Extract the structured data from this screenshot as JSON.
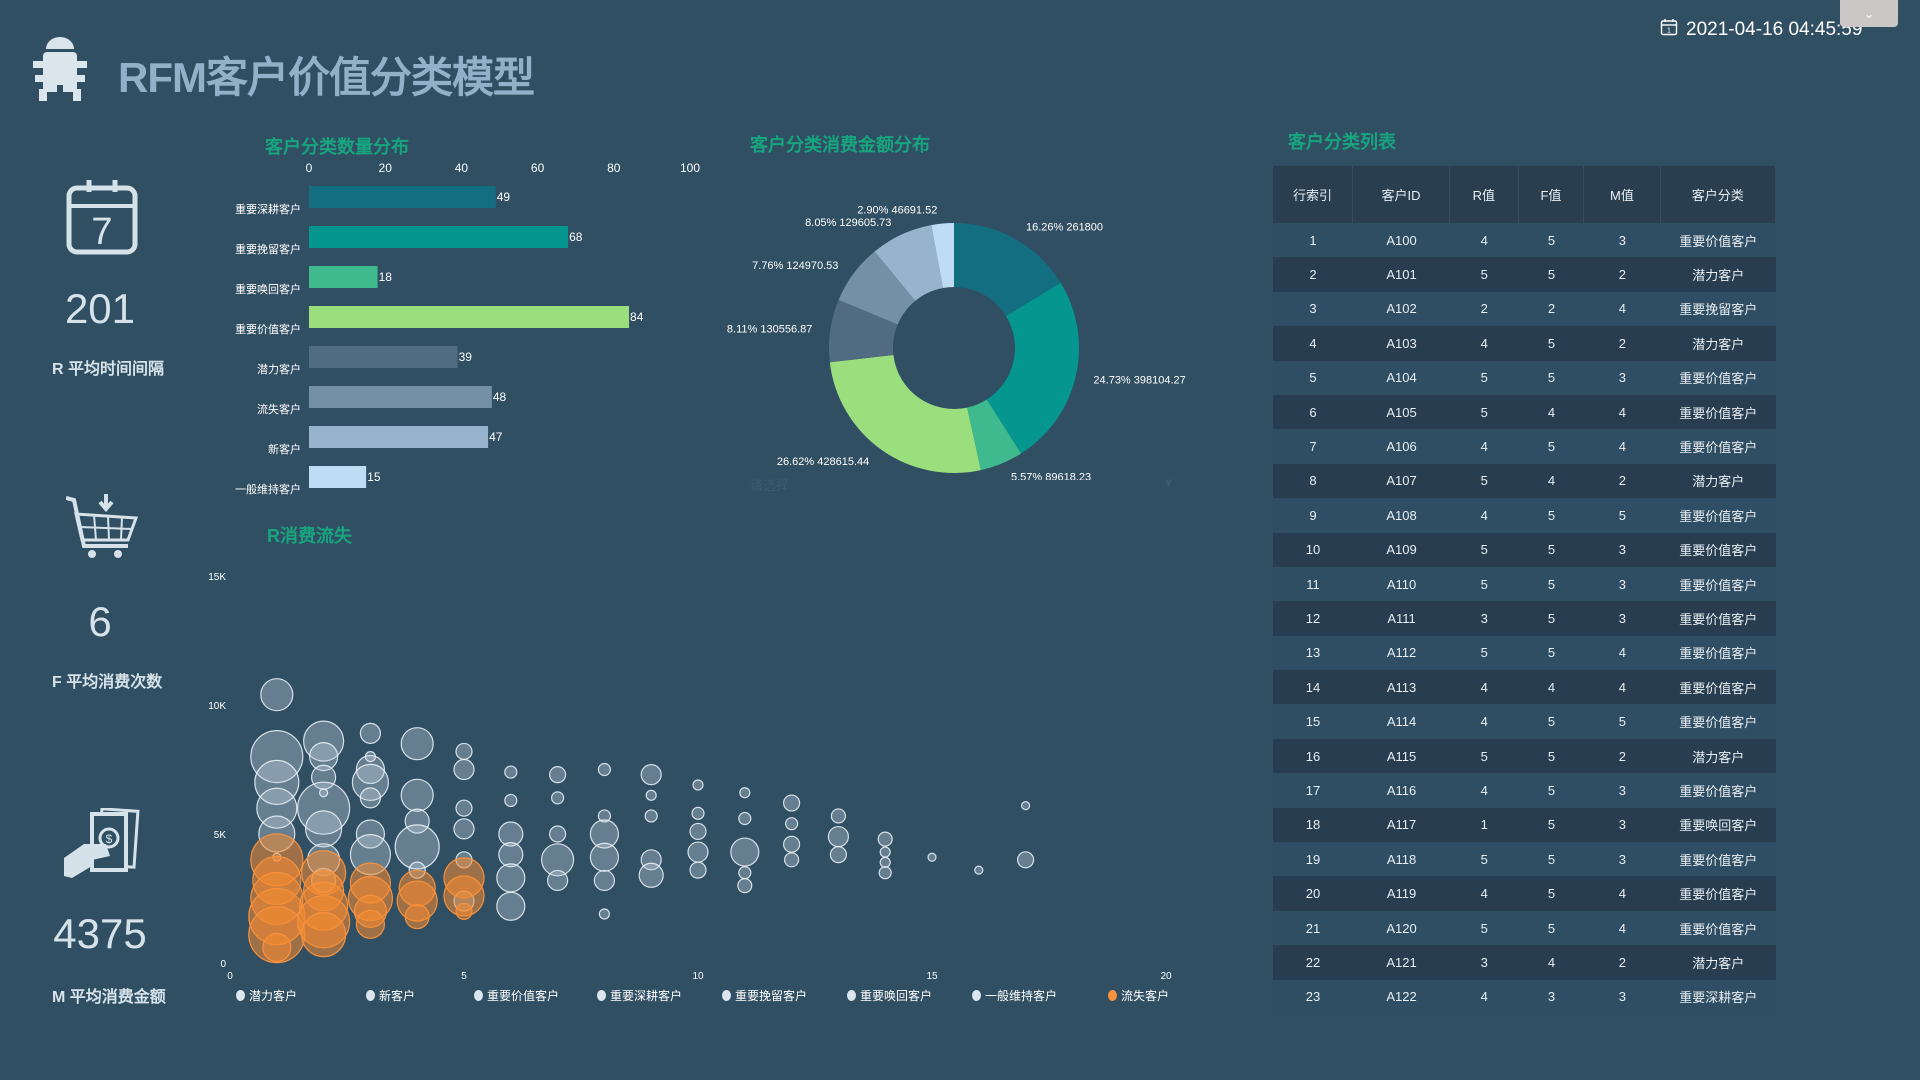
{
  "header": {
    "title": "RFM客户价值分类模型",
    "datetime": "2021-04-16 04:45:59",
    "tab_icon": "chevron-down-icon"
  },
  "kpis": [
    {
      "icon": "calendar-icon",
      "value": "201",
      "label": "R 平均时间间隔"
    },
    {
      "icon": "shopping-cart-icon",
      "value": "6",
      "label": "F 平均消费次数"
    },
    {
      "icon": "money-hand-icon",
      "value": "4375",
      "label": "M 平均消费金额"
    }
  ],
  "colors": {
    "accent": "#17a47f",
    "background": "#304f63",
    "churn": "#f7913d"
  },
  "chart_data": [
    {
      "type": "bar",
      "orientation": "horizontal",
      "title": "客户分类数量分布",
      "categories": [
        "重要深耕客户",
        "重要挽留客户",
        "重要唤回客户",
        "重要价值客户",
        "潜力客户",
        "流失客户",
        "新客户",
        "一般维持客户"
      ],
      "values": [
        49,
        68,
        18,
        84,
        39,
        48,
        47,
        15
      ],
      "colors": [
        "#136f80",
        "#05968f",
        "#3fba8f",
        "#9ade7e",
        "#506b82",
        "#7590a5",
        "#98b4cc",
        "#bfdcf5"
      ],
      "xlim": [
        0,
        100
      ],
      "xticks": [
        0,
        20,
        40,
        60,
        80,
        100
      ]
    },
    {
      "type": "pie",
      "donut": true,
      "title": "客户分类消费金额分布",
      "slices": [
        {
          "percent_label": "16.26%",
          "value": 261800,
          "value_label": "261800",
          "color": "#136f80"
        },
        {
          "percent_label": "24.73%",
          "value": 398104.27,
          "value_label": "398104.27",
          "color": "#05968f"
        },
        {
          "percent_label": "5.57%",
          "value": 89618.23,
          "value_label": "89618.23",
          "color": "#3fba8f"
        },
        {
          "percent_label": "26.62%",
          "value": 428615.44,
          "value_label": "428615.44",
          "color": "#9ade7e"
        },
        {
          "percent_label": "8.11%",
          "value": 130556.87,
          "value_label": "130556.87",
          "color": "#506b82"
        },
        {
          "percent_label": "7.76%",
          "value": 124970.53,
          "value_label": "124970.53",
          "color": "#7590a5"
        },
        {
          "percent_label": "8.05%",
          "value": 129605.73,
          "value_label": "129605.73",
          "color": "#98b4cc"
        },
        {
          "percent_label": "2.90%",
          "value": 46691.52,
          "value_label": "46691.52",
          "color": "#bfdcf5"
        }
      ],
      "select_placeholder": "请选择"
    },
    {
      "type": "scatter",
      "bubble": true,
      "title": "R消费流失",
      "xlim": [
        0,
        20
      ],
      "xticks": [
        "0",
        "5",
        "10",
        "15",
        "20"
      ],
      "ylim": [
        0,
        15000
      ],
      "yticks": [
        "0",
        "5K",
        "10K",
        "15K"
      ],
      "legend": [
        "潜力客户",
        "新客户",
        "重要价值客户",
        "重要深耕客户",
        "重要挽留客户",
        "重要唤回客户",
        "一般维持客户",
        "流失客户"
      ],
      "legend_colors": [
        "#dce6ee",
        "#dce6ee",
        "#dce6ee",
        "#dce6ee",
        "#dce6ee",
        "#dce6ee",
        "#dce6ee",
        "#f7913d"
      ],
      "legend_position": "bottom",
      "points": [
        [
          1,
          10400,
          16,
          0
        ],
        [
          1,
          8000,
          26,
          2
        ],
        [
          1,
          7000,
          22,
          2
        ],
        [
          1,
          6000,
          20,
          1
        ],
        [
          1,
          5000,
          18,
          2
        ],
        [
          1,
          4100,
          4,
          2
        ],
        [
          2,
          8600,
          20,
          1
        ],
        [
          2,
          8000,
          14,
          2
        ],
        [
          2,
          7200,
          12,
          2
        ],
        [
          2,
          6000,
          26,
          2
        ],
        [
          2,
          5200,
          18,
          1
        ],
        [
          2,
          4000,
          16,
          2
        ],
        [
          2,
          3200,
          12,
          2
        ],
        [
          2,
          6600,
          4,
          2
        ],
        [
          3,
          8900,
          10,
          2
        ],
        [
          3,
          7500,
          14,
          2
        ],
        [
          3,
          7000,
          18,
          2
        ],
        [
          3,
          6400,
          10,
          1
        ],
        [
          3,
          5000,
          14,
          2
        ],
        [
          3,
          4200,
          20,
          2
        ],
        [
          3,
          8000,
          5,
          2
        ],
        [
          4,
          8500,
          16,
          1
        ],
        [
          4,
          6500,
          16,
          2
        ],
        [
          4,
          5500,
          12,
          2
        ],
        [
          4,
          4500,
          22,
          2
        ],
        [
          4,
          3600,
          8,
          2
        ],
        [
          5,
          8200,
          8,
          2
        ],
        [
          5,
          7500,
          10,
          2
        ],
        [
          5,
          6000,
          8,
          2
        ],
        [
          5,
          5200,
          10,
          2
        ],
        [
          5,
          4000,
          8,
          2
        ],
        [
          5,
          2400,
          10,
          2
        ],
        [
          6,
          7400,
          6,
          2
        ],
        [
          6,
          6300,
          6,
          2
        ],
        [
          6,
          5000,
          12,
          2
        ],
        [
          6,
          4200,
          12,
          2
        ],
        [
          6,
          3300,
          14,
          2
        ],
        [
          6,
          2200,
          14,
          2
        ],
        [
          7,
          7300,
          8,
          2
        ],
        [
          7,
          6400,
          6,
          2
        ],
        [
          7,
          5000,
          8,
          2
        ],
        [
          7,
          4000,
          16,
          2
        ],
        [
          7,
          3200,
          10,
          2
        ],
        [
          8,
          7500,
          6,
          2
        ],
        [
          8,
          5700,
          6,
          2
        ],
        [
          8,
          5000,
          14,
          2
        ],
        [
          8,
          4100,
          14,
          2
        ],
        [
          8,
          3200,
          10,
          2
        ],
        [
          8,
          1900,
          5,
          2
        ],
        [
          9,
          7300,
          10,
          2
        ],
        [
          9,
          6500,
          5,
          2
        ],
        [
          9,
          5700,
          6,
          2
        ],
        [
          9,
          4000,
          10,
          2
        ],
        [
          9,
          3400,
          12,
          2
        ],
        [
          10,
          6900,
          5,
          2
        ],
        [
          10,
          5800,
          6,
          2
        ],
        [
          10,
          5100,
          8,
          2
        ],
        [
          10,
          4300,
          10,
          2
        ],
        [
          10,
          3600,
          8,
          2
        ],
        [
          11,
          6600,
          5,
          2
        ],
        [
          11,
          5600,
          6,
          2
        ],
        [
          11,
          4300,
          14,
          2
        ],
        [
          11,
          3500,
          6,
          2
        ],
        [
          11,
          3000,
          7,
          2
        ],
        [
          12,
          6200,
          8,
          2
        ],
        [
          12,
          5400,
          6,
          2
        ],
        [
          12,
          4600,
          8,
          2
        ],
        [
          12,
          4000,
          7,
          2
        ],
        [
          13,
          5700,
          7,
          2
        ],
        [
          13,
          4900,
          10,
          2
        ],
        [
          13,
          4200,
          8,
          2
        ],
        [
          14,
          4800,
          7,
          2
        ],
        [
          14,
          4300,
          5,
          2
        ],
        [
          14,
          3900,
          5,
          2
        ],
        [
          14,
          3500,
          6,
          2
        ],
        [
          15,
          4100,
          4,
          2
        ],
        [
          16,
          3600,
          4,
          2
        ],
        [
          17,
          6100,
          4,
          2
        ],
        [
          17,
          4000,
          8,
          2
        ],
        [
          1,
          4000,
          26,
          7
        ],
        [
          1,
          3200,
          24,
          7
        ],
        [
          1,
          2500,
          26,
          7
        ],
        [
          1,
          1800,
          28,
          7
        ],
        [
          1,
          1100,
          28,
          7
        ],
        [
          1,
          600,
          14,
          7
        ],
        [
          2,
          3500,
          22,
          7
        ],
        [
          2,
          2800,
          20,
          7
        ],
        [
          2,
          2200,
          24,
          7
        ],
        [
          2,
          1600,
          26,
          7
        ],
        [
          2,
          1100,
          22,
          7
        ],
        [
          3,
          3100,
          20,
          7
        ],
        [
          3,
          2500,
          22,
          7
        ],
        [
          3,
          2000,
          16,
          7
        ],
        [
          3,
          1500,
          14,
          7
        ],
        [
          4,
          2900,
          18,
          7
        ],
        [
          4,
          2400,
          20,
          7
        ],
        [
          4,
          1800,
          12,
          7
        ],
        [
          5,
          3300,
          20,
          7
        ],
        [
          5,
          2600,
          20,
          7
        ],
        [
          5,
          2000,
          8,
          7
        ]
      ]
    }
  ],
  "table": {
    "title": "客户分类列表",
    "columns": [
      "行索引",
      "客户ID",
      "R值",
      "F值",
      "M值",
      "客户分类"
    ],
    "rows": [
      [
        "1",
        "A100",
        "4",
        "5",
        "3",
        "重要价值客户"
      ],
      [
        "2",
        "A101",
        "5",
        "5",
        "2",
        "潜力客户"
      ],
      [
        "3",
        "A102",
        "2",
        "2",
        "4",
        "重要挽留客户"
      ],
      [
        "4",
        "A103",
        "4",
        "5",
        "2",
        "潜力客户"
      ],
      [
        "5",
        "A104",
        "5",
        "5",
        "3",
        "重要价值客户"
      ],
      [
        "6",
        "A105",
        "5",
        "4",
        "4",
        "重要价值客户"
      ],
      [
        "7",
        "A106",
        "4",
        "5",
        "4",
        "重要价值客户"
      ],
      [
        "8",
        "A107",
        "5",
        "4",
        "2",
        "潜力客户"
      ],
      [
        "9",
        "A108",
        "4",
        "5",
        "5",
        "重要价值客户"
      ],
      [
        "10",
        "A109",
        "5",
        "5",
        "3",
        "重要价值客户"
      ],
      [
        "11",
        "A110",
        "5",
        "5",
        "3",
        "重要价值客户"
      ],
      [
        "12",
        "A111",
        "3",
        "5",
        "3",
        "重要价值客户"
      ],
      [
        "13",
        "A112",
        "5",
        "5",
        "4",
        "重要价值客户"
      ],
      [
        "14",
        "A113",
        "4",
        "4",
        "4",
        "重要价值客户"
      ],
      [
        "15",
        "A114",
        "4",
        "5",
        "5",
        "重要价值客户"
      ],
      [
        "16",
        "A115",
        "5",
        "5",
        "2",
        "潜力客户"
      ],
      [
        "17",
        "A116",
        "4",
        "5",
        "3",
        "重要价值客户"
      ],
      [
        "18",
        "A117",
        "1",
        "5",
        "3",
        "重要唤回客户"
      ],
      [
        "19",
        "A118",
        "5",
        "5",
        "3",
        "重要价值客户"
      ],
      [
        "20",
        "A119",
        "4",
        "5",
        "4",
        "重要价值客户"
      ],
      [
        "21",
        "A120",
        "5",
        "5",
        "4",
        "重要价值客户"
      ],
      [
        "22",
        "A121",
        "3",
        "4",
        "2",
        "潜力客户"
      ],
      [
        "23",
        "A122",
        "4",
        "3",
        "3",
        "重要深耕客户"
      ]
    ]
  }
}
